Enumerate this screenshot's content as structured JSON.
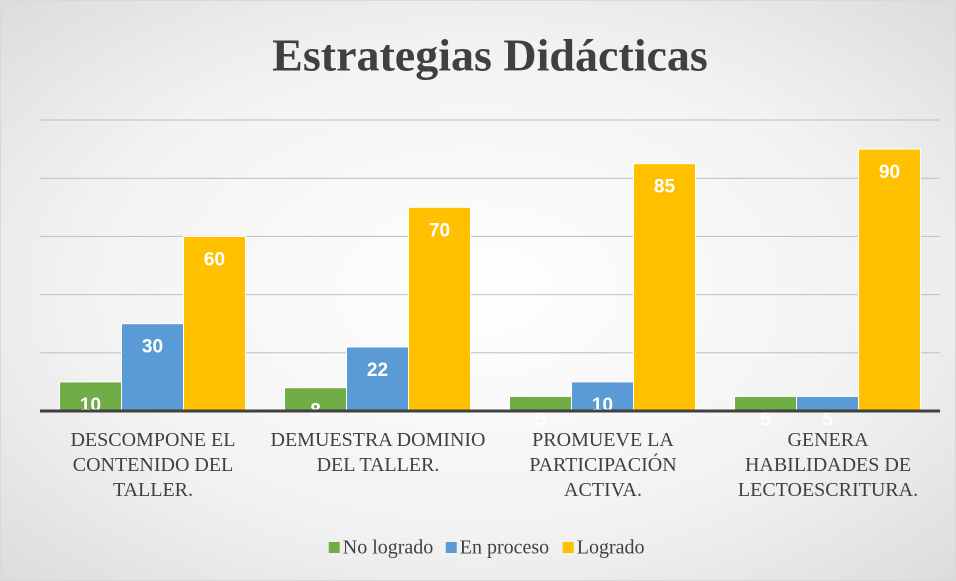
{
  "chart_data": {
    "type": "bar",
    "title": "Estrategias Didácticas",
    "categories": [
      "DESCOMPONE EL CONTENIDO DEL TALLER.",
      "DEMUESTRA DOMINIO DEL TALLER.",
      "PROMUEVE LA PARTICIPACIÓN ACTIVA.",
      "GENERA HABILIDADES DE LECTOESCRITURA."
    ],
    "series": [
      {
        "name": "No logrado",
        "color": "#70ad47",
        "values": [
          10,
          8,
          5,
          5
        ]
      },
      {
        "name": "En proceso",
        "color": "#5b9bd5",
        "values": [
          30,
          22,
          10,
          5
        ]
      },
      {
        "name": "Logrado",
        "color": "#ffc000",
        "values": [
          60,
          70,
          85,
          90
        ]
      }
    ],
    "ylim": [
      0,
      100
    ],
    "yticks": [
      0,
      20,
      40,
      60,
      80,
      100
    ],
    "grid": true,
    "legend": "bottom"
  }
}
